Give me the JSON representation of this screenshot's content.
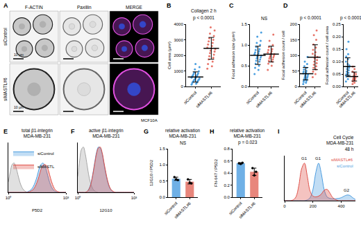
{
  "images": {
    "panel": "A",
    "columns": [
      "F-ACTIN",
      "Paxillin",
      "MERGE"
    ],
    "rows": [
      "siControl",
      "siMASTL#6"
    ],
    "scale_bar": "10 µm",
    "cell_line": "MCF10A"
  },
  "chart_data": [
    {
      "panel": "B",
      "type": "strip",
      "title": "Collagen 2 h",
      "annotations": [
        "p < 0.0001"
      ],
      "y_label": "Cell area (µm²)",
      "categories": [
        "siControl",
        "siMASTL#6"
      ],
      "colors": [
        "#4a9fe0",
        "#e8766b"
      ],
      "points": [
        [
          120,
          180,
          220,
          260,
          300,
          330,
          360,
          390,
          420,
          450,
          480,
          510,
          540,
          570,
          600,
          640,
          680,
          720,
          760,
          800,
          850,
          900,
          980,
          1100,
          1250,
          1450
        ],
        [
          1150,
          1300,
          1450,
          1600,
          1750,
          1850,
          1950,
          2050,
          2150,
          2250,
          2300,
          2400,
          2450,
          2500,
          2600,
          2700,
          2800,
          2900,
          3000,
          3100,
          3250,
          3400,
          3600,
          3800
        ]
      ],
      "mean": [
        610,
        2450
      ],
      "sd": [
        330,
        700
      ],
      "ylim": [
        0,
        4000
      ],
      "yticks": [
        0,
        1000,
        2000,
        3000,
        4000
      ]
    },
    {
      "panel": "C",
      "type": "strip",
      "annotations": [
        "NS"
      ],
      "y_label": "Focal adhesion size (µm²)",
      "categories": [
        "siControl",
        "siMASTL#6"
      ],
      "colors": [
        "#4a9fe0",
        "#e8766b"
      ],
      "points": [
        [
          0.3,
          0.4,
          0.45,
          0.5,
          0.55,
          0.6,
          0.62,
          0.65,
          0.68,
          0.7,
          0.72,
          0.74,
          0.76,
          0.78,
          0.8,
          0.82,
          0.85,
          0.88,
          0.9,
          0.95,
          1.0,
          1.05,
          1.1,
          1.2,
          1.3
        ],
        [
          0.4,
          0.5,
          0.55,
          0.6,
          0.62,
          0.65,
          0.68,
          0.7,
          0.72,
          0.74,
          0.76,
          0.78,
          0.8,
          0.82,
          0.85,
          0.88,
          0.9,
          0.95,
          1.0,
          1.1,
          1.25
        ]
      ],
      "mean": [
        0.75,
        0.78
      ],
      "sd": [
        0.22,
        0.19
      ],
      "ylim": [
        0,
        1.5
      ],
      "yticks": [
        {
          "value": 0,
          "label": "0.0"
        },
        {
          "value": 0.5,
          "label": "0.5"
        },
        {
          "value": 1,
          "label": "1.0"
        },
        {
          "value": 1.5,
          "label": "1.5"
        }
      ]
    },
    {
      "panel": "D",
      "type": "strip",
      "annotations": [
        "p < 0.0001"
      ],
      "y_label": "Focal adhesion count / cell",
      "categories": [
        "siControl",
        "siMASTL#6"
      ],
      "colors": [
        "#4a9fe0",
        "#e8766b"
      ],
      "points": [
        [
          8,
          12,
          15,
          18,
          20,
          22,
          25,
          28,
          30,
          32,
          35,
          38,
          40,
          42,
          45,
          48,
          50,
          55,
          60,
          65,
          72,
          80,
          95
        ],
        [
          30,
          40,
          48,
          55,
          60,
          65,
          70,
          75,
          80,
          85,
          90,
          95,
          100,
          105,
          110,
          118,
          125,
          135,
          150,
          165,
          180
        ]
      ],
      "mean": [
        41,
        94
      ],
      "sd": [
        20,
        40
      ],
      "ylim": [
        0,
        200
      ],
      "yticks": [
        0,
        50,
        100,
        150,
        200
      ]
    },
    {
      "type": "strip",
      "annotations": [
        "p < 0.0001"
      ],
      "y_label": "Focal adhesion count / cell area",
      "categories": [
        "siControl",
        "siMASTL#6"
      ],
      "colors": [
        "#4a9fe0",
        "#e8766b"
      ],
      "points": [
        [
          0.02,
          0.03,
          0.04,
          0.045,
          0.05,
          0.055,
          0.06,
          0.065,
          0.07,
          0.075,
          0.08,
          0.085,
          0.09,
          0.1,
          0.11,
          0.12,
          0.13,
          0.15,
          0.18
        ],
        [
          0.01,
          0.015,
          0.02,
          0.025,
          0.028,
          0.03,
          0.032,
          0.035,
          0.038,
          0.04,
          0.045,
          0.05,
          0.055,
          0.06,
          0.07,
          0.08
        ]
      ],
      "mean": [
        0.08,
        0.04
      ],
      "sd": [
        0.035,
        0.018
      ],
      "ylim": [
        0,
        0.25
      ],
      "yticks": [
        {
          "value": 0,
          "label": "0.00"
        },
        {
          "value": 0.05,
          "label": "0.05"
        },
        {
          "value": 0.1,
          "label": "0.10"
        },
        {
          "value": 0.15,
          "label": "0.15"
        },
        {
          "value": 0.2,
          "label": "0.20"
        },
        {
          "value": 0.25,
          "label": "0.25"
        }
      ]
    },
    {
      "panel": "E",
      "type": "line",
      "title": "total β1-integrin\nMDA-MB-231",
      "x_label": "P5D2",
      "log": "x",
      "legend": "upper left",
      "tick_labels": "x",
      "x": [
        1,
        1.26,
        1.58,
        2,
        2.51,
        3.16,
        3.98,
        5.01,
        6.31,
        7.94,
        10,
        12.6,
        15.8,
        20,
        25.1,
        31.6,
        39.8,
        50.1,
        63.1,
        79.4,
        100,
        126,
        158,
        200,
        251,
        316,
        398,
        501,
        631,
        794,
        1000
      ],
      "series": [
        {
          "color": "#a6a6a6",
          "values": [
            0.35,
            0.7,
            0.95,
            1.0,
            0.85,
            0.6,
            0.35,
            0.18,
            0.08,
            0.03,
            0.01,
            0,
            0,
            0,
            0,
            0,
            0,
            0,
            0,
            0,
            0,
            0,
            0,
            0,
            0,
            0,
            0,
            0,
            0,
            0,
            0
          ]
        },
        {
          "name": "siControl",
          "color": "#4d9de0",
          "values": [
            0,
            0,
            0,
            0,
            0,
            0,
            0,
            0,
            0,
            0,
            0.02,
            0.05,
            0.1,
            0.2,
            0.35,
            0.55,
            0.8,
            0.95,
            1.0,
            0.9,
            0.7,
            0.45,
            0.25,
            0.12,
            0.05,
            0.02,
            0,
            0,
            0,
            0,
            0
          ]
        },
        {
          "name": "siMASTL",
          "color": "#e0524a",
          "values": [
            0,
            0,
            0,
            0,
            0,
            0,
            0,
            0,
            0,
            0,
            0,
            0.02,
            0.05,
            0.1,
            0.2,
            0.35,
            0.55,
            0.78,
            0.92,
            0.95,
            0.9,
            0.72,
            0.48,
            0.27,
            0.13,
            0.05,
            0.02,
            0,
            0,
            0,
            0
          ]
        }
      ],
      "xlim": [
        1,
        1000
      ],
      "xticks": [
        {
          "value": 1,
          "label": "10⁰"
        },
        {
          "value": 1000,
          "label": "10³"
        }
      ],
      "ylim": [
        0,
        1.7
      ]
    },
    {
      "panel": "F",
      "type": "line",
      "title": "active β1-integrin\nMDA-MB-231",
      "x_label": "12G10",
      "log": "x",
      "tick_labels": "x",
      "x": [
        1,
        1.26,
        1.58,
        2,
        2.51,
        3.16,
        3.98,
        5.01,
        6.31,
        7.94,
        10,
        12.6,
        15.8,
        20,
        25.1,
        31.6,
        39.8,
        50.1,
        63.1,
        79.4,
        100,
        126,
        158,
        200,
        251,
        316,
        398,
        501,
        631,
        794,
        1000
      ],
      "series": [
        {
          "color": "#a6a6a6",
          "values": [
            0.35,
            0.7,
            0.95,
            1.0,
            0.85,
            0.6,
            0.35,
            0.18,
            0.08,
            0.03,
            0.01,
            0,
            0,
            0,
            0,
            0,
            0,
            0,
            0,
            0,
            0,
            0,
            0,
            0,
            0,
            0,
            0,
            0,
            0,
            0,
            0
          ]
        },
        {
          "color": "#4d9de0",
          "values": [
            0,
            0,
            0,
            0,
            0,
            0.02,
            0.08,
            0.2,
            0.4,
            0.65,
            0.88,
            1.0,
            0.98,
            0.85,
            0.62,
            0.4,
            0.22,
            0.1,
            0.04,
            0.01,
            0,
            0,
            0,
            0,
            0,
            0,
            0,
            0,
            0,
            0,
            0
          ]
        },
        {
          "color": "#e0524a",
          "values": [
            0,
            0,
            0,
            0,
            0,
            0.02,
            0.07,
            0.18,
            0.38,
            0.62,
            0.85,
            0.98,
            1.0,
            0.88,
            0.66,
            0.44,
            0.25,
            0.12,
            0.05,
            0.02,
            0,
            0,
            0,
            0,
            0,
            0,
            0,
            0,
            0,
            0,
            0
          ]
        }
      ],
      "xlim": [
        1,
        1000
      ],
      "xticks": [
        {
          "value": 1,
          "label": "10⁰"
        },
        {
          "value": 1000,
          "label": "10³"
        }
      ],
      "ylim": [
        0,
        1.1
      ]
    },
    {
      "panel": "G",
      "type": "bar",
      "title": "relative activation\nMDA-MB-231",
      "annotations": [
        "NS"
      ],
      "y_label": "12G10 / P5D2",
      "categories": [
        "siControl",
        "siMASTL#6"
      ],
      "colors": [
        "#6fb0e6",
        "#e8867c"
      ],
      "values": [
        0.57,
        0.48
      ],
      "sd": [
        0.05,
        0.07
      ],
      "points": [
        [
          0.62,
          0.55,
          0.53
        ],
        [
          0.55,
          0.45,
          0.43
        ]
      ],
      "ylim": [
        0,
        1.5
      ],
      "yticks": [
        {
          "value": 0,
          "label": "0.0"
        },
        {
          "value": 0.5,
          "label": "0.5"
        },
        {
          "value": 1,
          "label": "1.0"
        },
        {
          "value": 1.5,
          "label": "1.5"
        }
      ]
    },
    {
      "panel": "H",
      "type": "bar",
      "title": "relative activation\nMDA-MB-231",
      "annotations": [
        "p = 0.023"
      ],
      "y_label": "FN-647 / P5D2",
      "categories": [
        "siControl",
        "siMASTL#6"
      ],
      "colors": [
        "#6fb0e6",
        "#e8867c"
      ],
      "values": [
        0.56,
        0.42
      ],
      "sd": [
        0.01,
        0.06
      ],
      "points": [
        [
          0.56,
          0.55,
          0.57
        ],
        [
          0.48,
          0.36,
          0.42
        ]
      ],
      "ylim": [
        0,
        0.8
      ],
      "yticks": [
        {
          "value": 0,
          "label": "0.0"
        },
        {
          "value": 0.2,
          "label": "0.2"
        },
        {
          "value": 0.4,
          "label": "0.4"
        },
        {
          "value": 0.6,
          "label": "0.6"
        },
        {
          "value": 0.8,
          "label": "0.8"
        }
      ]
    },
    {
      "panel": "I",
      "type": "line",
      "title": "Cell Cycle\nMDA-MB-231\n48 h",
      "annotations": [
        "G1",
        "G1",
        "G2"
      ],
      "tick_labels": "x",
      "x": [
        0,
        20,
        40,
        60,
        80,
        100,
        120,
        140,
        160,
        180,
        200,
        220,
        240,
        260,
        280,
        300,
        320,
        340,
        360,
        380,
        400,
        420,
        440,
        460,
        480,
        500
      ],
      "series": [
        {
          "name": "siControl",
          "color": "#4d9de0",
          "values": [
            0,
            0,
            0,
            0,
            0,
            0,
            0,
            0,
            0.02,
            0.08,
            0.3,
            0.75,
            1.0,
            0.7,
            0.28,
            0.1,
            0.06,
            0.05,
            0.05,
            0.06,
            0.08,
            0.12,
            0.15,
            0.14,
            0.08,
            0.03
          ]
        },
        {
          "name": "siMASTL#6",
          "color": "#e0524a",
          "values": [
            0,
            0,
            0,
            0.02,
            0.1,
            0.4,
            0.85,
            1.0,
            0.65,
            0.25,
            0.12,
            0.1,
            0.12,
            0.18,
            0.28,
            0.3,
            0.2,
            0.08,
            0.03,
            0,
            0,
            0,
            0,
            0,
            0,
            0
          ]
        }
      ],
      "xlim": [
        0,
        500
      ],
      "xticks": [
        0,
        200,
        400
      ],
      "ylim": [
        0,
        1.2
      ]
    }
  ]
}
